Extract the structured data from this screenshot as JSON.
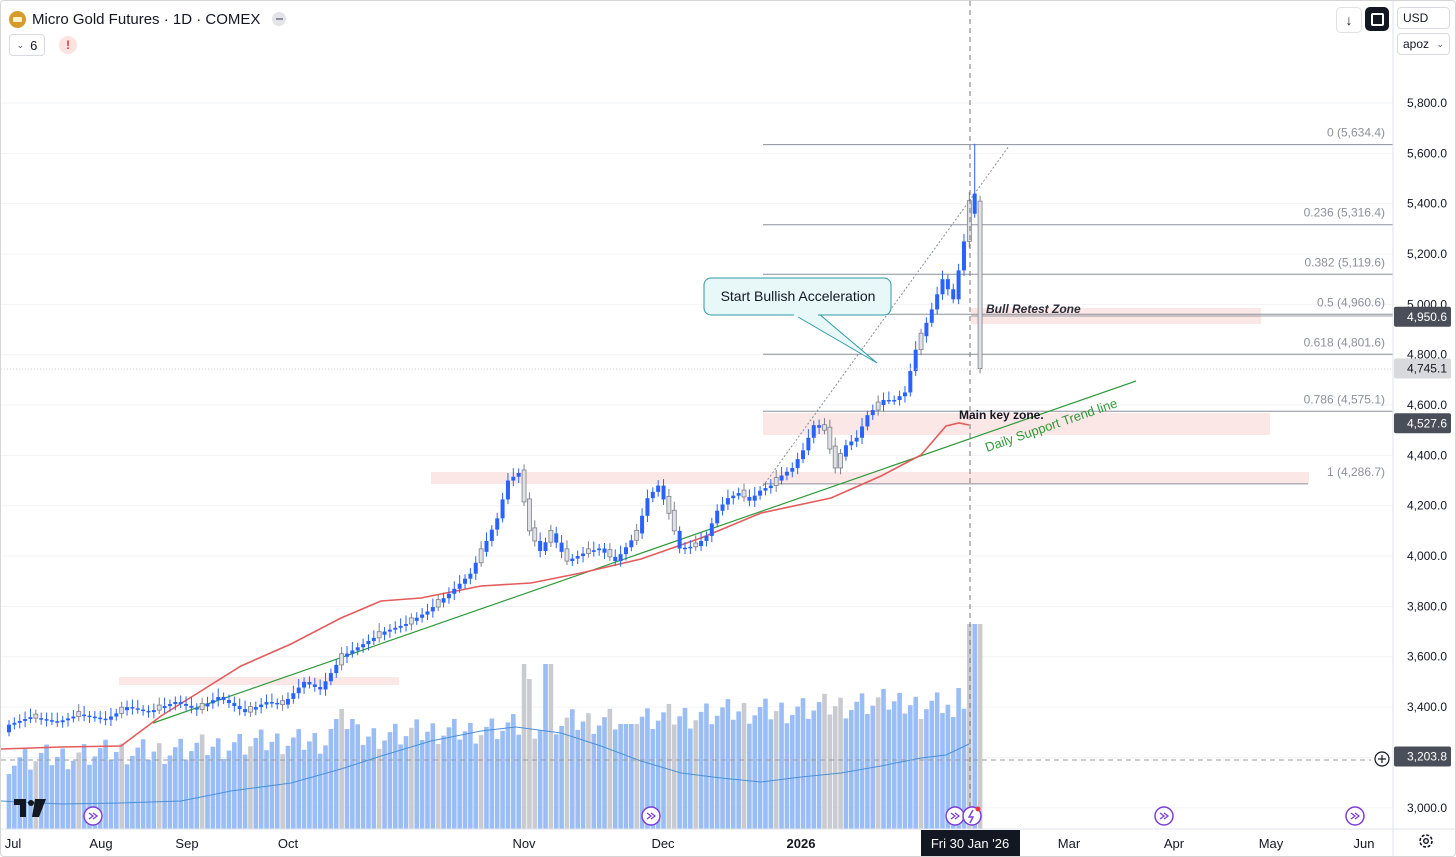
{
  "header": {
    "title": "Micro Gold Futures · 1D · COMEX",
    "indicator_count": "6",
    "warning_label": "!",
    "currency": "USD",
    "unit": "apoz"
  },
  "icons": {
    "symbol": "gold-bar-icon",
    "download": "download-icon",
    "fullscreen": "fullscreen-icon",
    "warning": "warning-icon",
    "logo": "tradingview-logo-icon",
    "settings": "gear-icon",
    "crosshair": "plus-circle-icon",
    "event": "event-arrow-icon"
  },
  "colors": {
    "up": "#2962ff",
    "down": "#b2b5be",
    "ma": "#e53935",
    "trend": "#2e9a3a",
    "vol_up": "#90b7f5",
    "vol_down": "#c9cbd1",
    "vol_ma": "#4a90d9"
  },
  "price_axis": {
    "ticks": [
      "5,800.0",
      "5,600.0",
      "5,400.0",
      "5,200.0",
      "5,000.0",
      "4,800.0",
      "4,600.0",
      "4,400.0",
      "4,200.0",
      "4,000.0",
      "3,800.0",
      "3,600.0",
      "3,400.0",
      "3,200.0",
      "3,000.0"
    ],
    "badges": [
      {
        "text": "4,950.6",
        "style": "dark"
      },
      {
        "text": "4,745.1",
        "style": "light"
      },
      {
        "text": "4,527.6",
        "style": "dark"
      },
      {
        "text": "3,203.8",
        "style": "dark"
      }
    ]
  },
  "time_axis": {
    "ticks": [
      "Jul",
      "Aug",
      "Sep",
      "Oct",
      "Nov",
      "Dec",
      "2026",
      "Mar",
      "Apr",
      "May",
      "Jun"
    ],
    "cursor_label": "Fri 30 Jan '26"
  },
  "fib_levels": [
    {
      "ratio": "0",
      "price": "5,634.4",
      "label": "0 (5,634.4)"
    },
    {
      "ratio": "0.236",
      "price": "5,316.4",
      "label": "0.236 (5,316.4)"
    },
    {
      "ratio": "0.382",
      "price": "5,119.6",
      "label": "0.382 (5,119.6)"
    },
    {
      "ratio": "0.5",
      "price": "4,960.6",
      "label": "0.5 (4,960.6)"
    },
    {
      "ratio": "0.618",
      "price": "4,801.6",
      "label": "0.618 (4,801.6)"
    },
    {
      "ratio": "0.786",
      "price": "4,575.1",
      "label": "0.786 (4,575.1)"
    },
    {
      "ratio": "1",
      "price": "4,286.7",
      "label": "1 (4,286.7)"
    }
  ],
  "annotations": {
    "callout": "Start Bullish Acceleration",
    "bull_zone": "Bull Retest Zone",
    "key_zone": "Main key zone.",
    "trend_line": "Daily Support Trend line"
  }
}
